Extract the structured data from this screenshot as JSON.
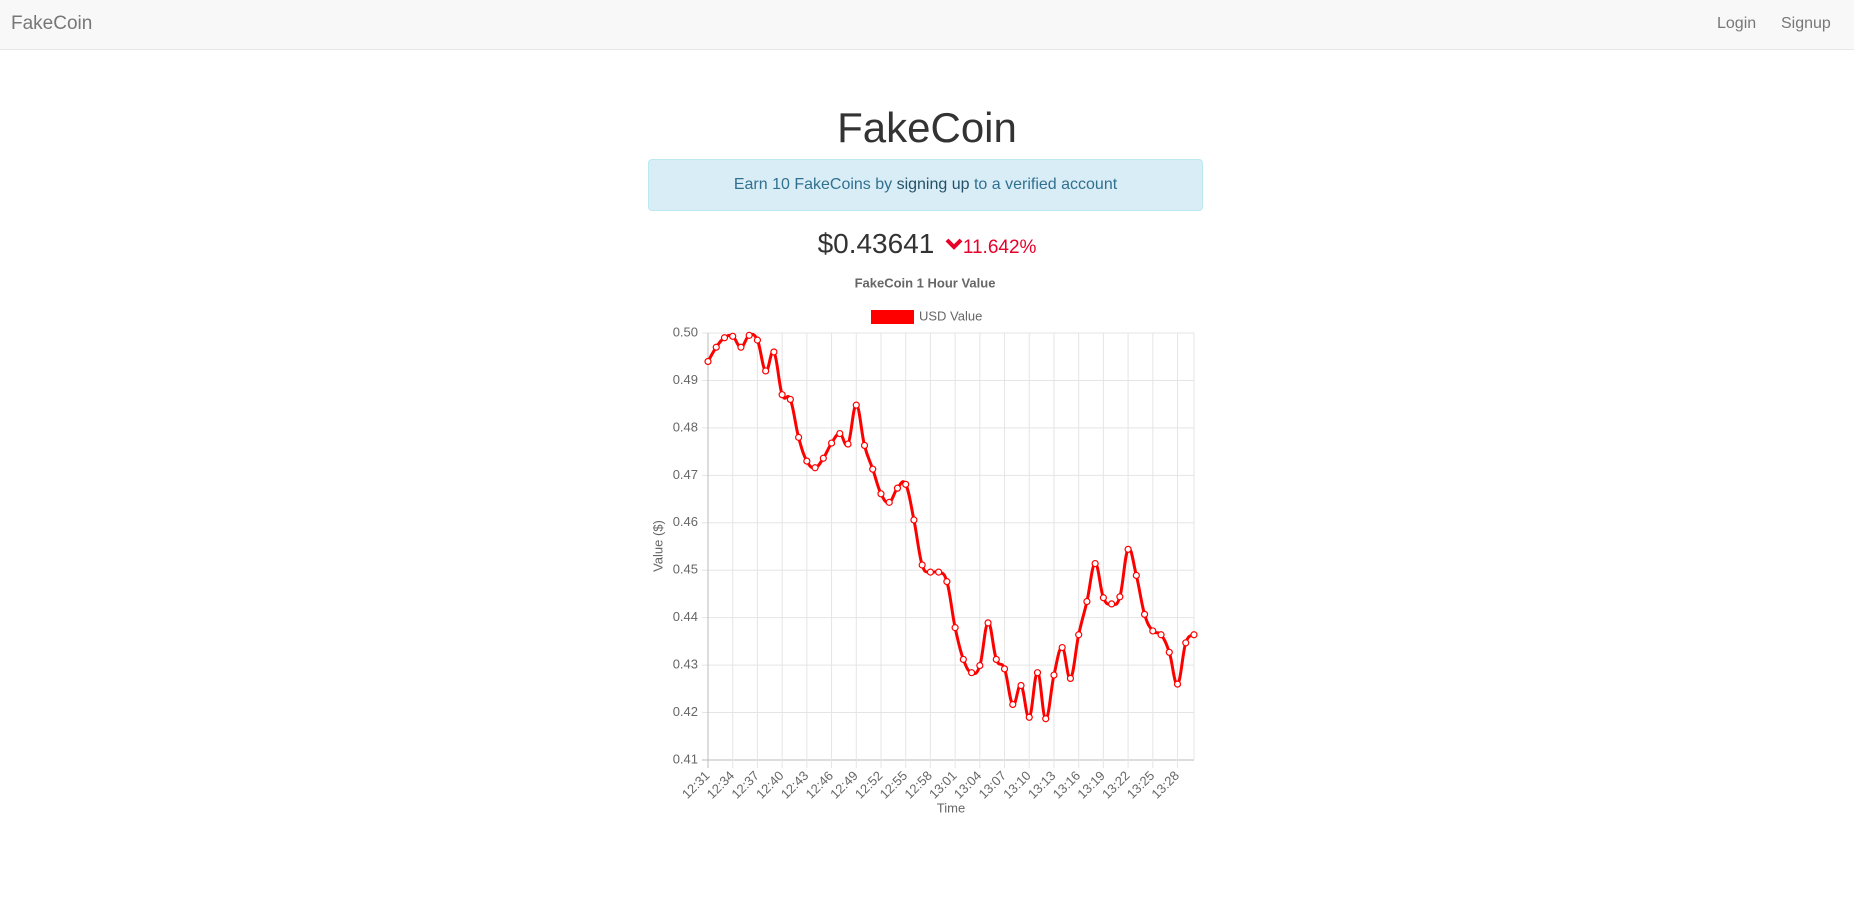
{
  "navbar": {
    "brand": "FakeCoin",
    "links": [
      "Login",
      "Signup"
    ]
  },
  "header": {
    "title": "FakeCoin"
  },
  "alert": {
    "text_before": "Earn 10 FakeCoins by ",
    "link": "signing up",
    "text_after": " to a verified account"
  },
  "price": {
    "value": "$0.43641",
    "change": "11.642%"
  },
  "chart_data": {
    "type": "line",
    "title": "FakeCoin 1 Hour Value",
    "xlabel": "Time",
    "ylabel": "Value ($)",
    "categories": [
      "12:31",
      null,
      null,
      "12:34",
      null,
      null,
      "12:37",
      null,
      null,
      "12:40",
      null,
      null,
      "12:43",
      null,
      null,
      "12:46",
      null,
      null,
      "12:49",
      null,
      null,
      "12:52",
      null,
      null,
      "12:55",
      null,
      null,
      "12:58",
      null,
      null,
      "13:01",
      null,
      null,
      "13:04",
      null,
      null,
      "13:07",
      null,
      null,
      "13:10",
      null,
      null,
      "13:13",
      null,
      null,
      "13:16",
      null,
      null,
      "13:19",
      null,
      null,
      "13:22",
      null,
      null,
      "13:25",
      null,
      null,
      "13:28",
      null,
      null
    ],
    "series": [
      {
        "name": "USD Value",
        "color": "#ff0000",
        "values": [
          0.494,
          0.497,
          0.499,
          0.4993,
          0.497,
          0.4995,
          0.4985,
          0.492,
          0.496,
          0.487,
          0.486,
          0.478,
          0.473,
          0.4716,
          0.4736,
          0.4768,
          0.4788,
          0.4766,
          0.4848,
          0.4763,
          0.4713,
          0.4661,
          0.4643,
          0.4673,
          0.4681,
          0.4606,
          0.4511,
          0.4496,
          0.4496,
          0.4476,
          0.4379,
          0.4312,
          0.4284,
          0.4299,
          0.4389,
          0.4312,
          0.4292,
          0.4217,
          0.4257,
          0.419,
          0.4284,
          0.4187,
          0.4279,
          0.4337,
          0.4272,
          0.4364,
          0.4434,
          0.4514,
          0.4442,
          0.4429,
          0.4444,
          0.4544,
          0.4489,
          0.4407,
          0.4372,
          0.4364,
          0.4327,
          0.426,
          0.4347,
          0.4364
        ]
      }
    ],
    "ylim": [
      0.41,
      0.5
    ],
    "yticks": [
      0.41,
      0.42,
      0.43,
      0.44,
      0.45,
      0.46,
      0.47,
      0.48,
      0.49,
      {
        "value": 0.5,
        "label": "0.50"
      }
    ],
    "grid": true,
    "legend": "top"
  }
}
